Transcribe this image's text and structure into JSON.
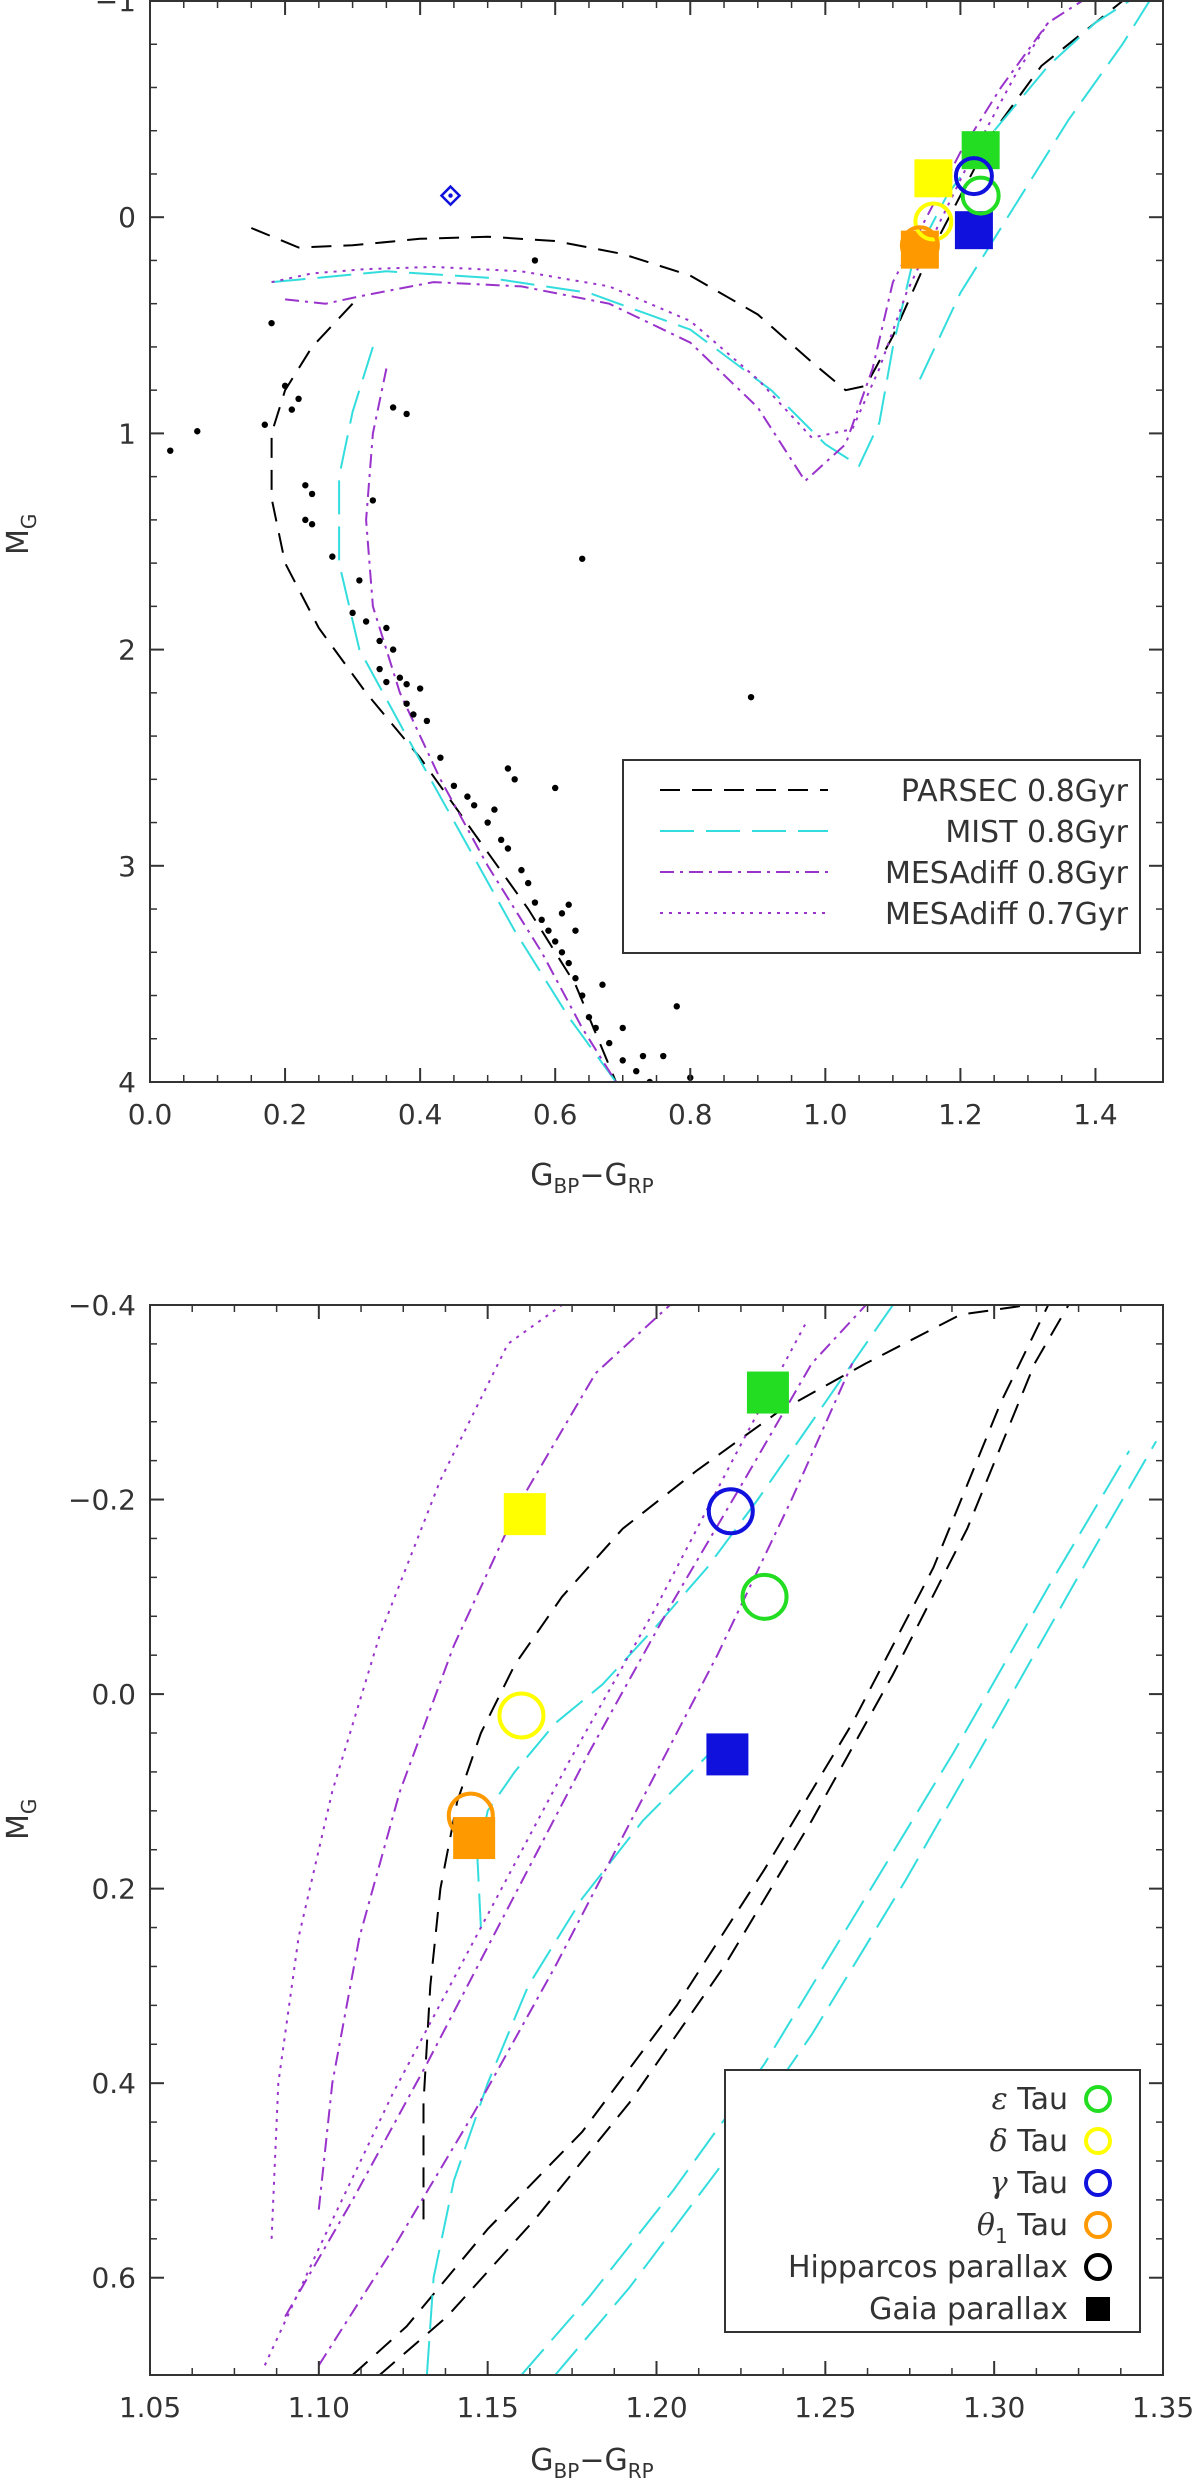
{
  "colors": {
    "parsec": "#000000",
    "mist": "#33dddd",
    "mesa": "#9933cc",
    "eps": "#22dd22",
    "delta": "#ffff00",
    "gamma": "#1111dd",
    "theta": "#ff9900"
  },
  "chart_data": [
    {
      "type": "scatter",
      "title": "",
      "xlabel": "G",
      "xlabel_sub": "BP",
      "xlabel_mid": "−G",
      "xlabel_sub2": "RP",
      "ylabel": "M",
      "ylabel_sub": "G",
      "xlim": [
        0.0,
        1.5
      ],
      "ylim": [
        -1,
        4
      ],
      "y_inverted": true,
      "xticks": [
        "0.0",
        "0.2",
        "0.4",
        "0.6",
        "0.8",
        "1.0",
        "1.2",
        "1.4"
      ],
      "xtick_values": [
        0.0,
        0.2,
        0.4,
        0.6,
        0.8,
        1.0,
        1.2,
        1.4
      ],
      "yticks": [
        "−1",
        "0",
        "1",
        "2",
        "3",
        "4"
      ],
      "ytick_values": [
        -1,
        0,
        1,
        2,
        3,
        4
      ],
      "legend": {
        "placement": "lower-right",
        "entries": [
          {
            "label": "PARSEC 0.8Gyr",
            "style": "parsec"
          },
          {
            "label": "MIST 0.8Gyr",
            "style": "mist"
          },
          {
            "label": "MESAdiff 0.8Gyr",
            "style": "mesa08"
          },
          {
            "label": "MESAdiff 0.7Gyr",
            "style": "mesa07"
          }
        ]
      },
      "series": [
        {
          "style": "parsec",
          "x": [
            0.15,
            0.22,
            0.3,
            0.4,
            0.5,
            0.6,
            0.7,
            0.8,
            0.9,
            0.98,
            1.03,
            1.06,
            1.1,
            1.15,
            1.2,
            1.25,
            1.32,
            1.4,
            1.44
          ],
          "y": [
            0.05,
            0.14,
            0.13,
            0.1,
            0.09,
            0.11,
            0.17,
            0.27,
            0.45,
            0.67,
            0.8,
            0.78,
            0.55,
            0.2,
            -0.1,
            -0.4,
            -0.7,
            -0.9,
            -1.0
          ]
        },
        {
          "style": "parsec",
          "x": [
            0.3,
            0.24,
            0.2,
            0.18,
            0.18,
            0.2,
            0.25,
            0.32,
            0.4,
            0.48,
            0.56,
            0.63,
            0.69
          ],
          "y": [
            0.4,
            0.6,
            0.8,
            1.0,
            1.3,
            1.6,
            1.9,
            2.2,
            2.5,
            2.85,
            3.2,
            3.55,
            4.0
          ]
        },
        {
          "style": "mist",
          "x": [
            0.18,
            0.25,
            0.35,
            0.5,
            0.65,
            0.8,
            0.92,
            1.0,
            1.05,
            1.08,
            1.1,
            1.13,
            1.18,
            1.25,
            1.33,
            1.4,
            1.45
          ],
          "y": [
            0.3,
            0.28,
            0.25,
            0.28,
            0.35,
            0.52,
            0.8,
            1.05,
            1.15,
            0.95,
            0.6,
            0.2,
            -0.1,
            -0.4,
            -0.7,
            -0.9,
            -1.0
          ]
        },
        {
          "style": "mist",
          "x": [
            0.33,
            0.3,
            0.28,
            0.28,
            0.31,
            0.38,
            0.46,
            0.54,
            0.62,
            0.69
          ],
          "y": [
            0.6,
            0.9,
            1.2,
            1.6,
            2.0,
            2.4,
            2.85,
            3.3,
            3.7,
            4.0
          ]
        },
        {
          "style": "mist",
          "x": [
            1.14,
            1.2,
            1.28,
            1.36,
            1.44,
            1.48
          ],
          "y": [
            0.75,
            0.35,
            -0.05,
            -0.45,
            -0.8,
            -1.0
          ]
        },
        {
          "style": "mesa08",
          "x": [
            0.2,
            0.26,
            0.32,
            0.42,
            0.55,
            0.68,
            0.8,
            0.9,
            0.97,
            1.03,
            1.07,
            1.1,
            1.15,
            1.2,
            1.26,
            1.33,
            1.38
          ],
          "y": [
            0.38,
            0.4,
            0.36,
            0.3,
            0.32,
            0.4,
            0.58,
            0.88,
            1.22,
            1.05,
            0.7,
            0.3,
            0.0,
            -0.3,
            -0.6,
            -0.9,
            -1.0
          ]
        },
        {
          "style": "mesa08",
          "x": [
            0.35,
            0.33,
            0.32,
            0.33,
            0.37,
            0.43,
            0.5,
            0.58,
            0.64,
            0.69
          ],
          "y": [
            0.7,
            1.0,
            1.4,
            1.8,
            2.2,
            2.6,
            3.0,
            3.4,
            3.75,
            4.0
          ]
        },
        {
          "style": "mesa07",
          "x": [
            0.18,
            0.24,
            0.32,
            0.42,
            0.55,
            0.68,
            0.8,
            0.9,
            0.98,
            1.04,
            1.08,
            1.12,
            1.17,
            1.22,
            1.28,
            1.33
          ],
          "y": [
            0.3,
            0.26,
            0.24,
            0.23,
            0.25,
            0.32,
            0.48,
            0.75,
            1.02,
            0.98,
            0.7,
            0.35,
            0.02,
            -0.3,
            -0.65,
            -0.9
          ]
        }
      ],
      "stars_x": [
        0.03,
        0.07,
        0.17,
        0.18,
        0.2,
        0.21,
        0.22,
        0.23,
        0.23,
        0.24,
        0.24,
        0.27,
        0.3,
        0.31,
        0.32,
        0.33,
        0.34,
        0.34,
        0.35,
        0.35,
        0.36,
        0.37,
        0.38,
        0.38,
        0.39,
        0.4,
        0.36,
        0.38,
        0.41,
        0.43,
        0.45,
        0.47,
        0.48,
        0.5,
        0.51,
        0.52,
        0.53,
        0.55,
        0.56,
        0.57,
        0.58,
        0.59,
        0.6,
        0.61,
        0.62,
        0.63,
        0.64,
        0.65,
        0.66,
        0.68,
        0.7,
        0.72,
        0.74,
        0.76,
        0.78,
        0.8,
        0.6,
        0.53,
        0.54,
        0.64,
        0.89,
        0.57,
        0.61,
        0.62,
        0.67,
        0.7,
        0.73,
        0.63
      ],
      "stars_y": [
        1.08,
        0.99,
        0.96,
        0.49,
        0.78,
        0.89,
        0.84,
        1.24,
        1.4,
        1.28,
        1.42,
        1.57,
        1.83,
        1.68,
        1.87,
        1.31,
        1.96,
        2.09,
        1.9,
        2.15,
        2.0,
        2.13,
        2.25,
        2.16,
        2.3,
        2.18,
        0.88,
        0.91,
        2.33,
        2.5,
        2.63,
        2.68,
        2.72,
        2.8,
        2.74,
        2.88,
        2.92,
        3.02,
        3.08,
        3.17,
        3.25,
        3.3,
        3.35,
        3.4,
        3.45,
        3.52,
        3.6,
        3.7,
        3.75,
        3.82,
        3.9,
        3.95,
        4.0,
        3.88,
        3.65,
        3.98,
        2.64,
        2.55,
        2.6,
        1.58,
        2.22,
        0.2,
        3.22,
        3.18,
        3.55,
        3.75,
        3.88,
        3.3
      ],
      "blue_diamond": {
        "x": 0.445,
        "y": -0.1
      },
      "markers": [
        {
          "star": "eps",
          "kind": "square",
          "x": 1.23,
          "y": -0.31
        },
        {
          "star": "eps",
          "kind": "circle",
          "x": 1.23,
          "y": -0.1
        },
        {
          "star": "delta",
          "kind": "square",
          "x": 1.16,
          "y": -0.18
        },
        {
          "star": "delta",
          "kind": "circle",
          "x": 1.16,
          "y": 0.02
        },
        {
          "star": "gamma",
          "kind": "square",
          "x": 1.22,
          "y": 0.06
        },
        {
          "star": "gamma",
          "kind": "circle",
          "x": 1.22,
          "y": -0.19
        },
        {
          "star": "theta",
          "kind": "square",
          "x": 1.14,
          "y": 0.15
        },
        {
          "star": "theta",
          "kind": "circle",
          "x": 1.14,
          "y": 0.13
        }
      ]
    },
    {
      "type": "scatter",
      "title": "",
      "xlabel": "G",
      "xlabel_sub": "BP",
      "xlabel_mid": "−G",
      "xlabel_sub2": "RP",
      "ylabel": "M",
      "ylabel_sub": "G",
      "xlim": [
        1.05,
        1.35
      ],
      "ylim": [
        -0.4,
        0.7
      ],
      "y_inverted": true,
      "xticks": [
        "1.05",
        "1.10",
        "1.15",
        "1.20",
        "1.25",
        "1.30",
        "1.35"
      ],
      "xtick_values": [
        1.05,
        1.1,
        1.15,
        1.2,
        1.25,
        1.3,
        1.35
      ],
      "yticks": [
        "−0.4",
        "−0.2",
        "0.0",
        "0.2",
        "0.4",
        "0.6"
      ],
      "ytick_values": [
        -0.4,
        -0.2,
        0.0,
        0.2,
        0.4,
        0.6
      ],
      "legend": {
        "placement": "lower-right",
        "entries": [
          {
            "label_symbol": "ε",
            "label_text": "Tau",
            "marker": "circle",
            "color": "eps"
          },
          {
            "label_symbol": "δ",
            "label_text": "Tau",
            "marker": "circle",
            "color": "delta"
          },
          {
            "label_symbol": "γ",
            "label_text": "Tau",
            "marker": "circle",
            "color": "gamma"
          },
          {
            "label_symbol": "θ",
            "label_sub": "1",
            "label_text": "Tau",
            "marker": "circle",
            "color": "theta"
          },
          {
            "label_text": "Hipparcos parallax",
            "marker": "circle",
            "color": "#000000"
          },
          {
            "label_text": "Gaia parallax",
            "marker": "square",
            "color": "#000000"
          }
        ]
      },
      "series": [
        {
          "style": "parsec",
          "x": [
            1.131,
            1.131,
            1.133,
            1.136,
            1.141,
            1.148,
            1.158,
            1.172,
            1.19,
            1.212,
            1.236,
            1.262,
            1.29,
            1.31
          ],
          "y": [
            0.54,
            0.42,
            0.3,
            0.2,
            0.11,
            0.04,
            -0.03,
            -0.1,
            -0.17,
            -0.23,
            -0.29,
            -0.34,
            -0.39,
            -0.4
          ]
        },
        {
          "style": "parsec",
          "x": [
            1.11,
            1.126,
            1.15,
            1.178,
            1.206,
            1.232,
            1.258,
            1.282,
            1.302,
            1.316
          ],
          "y": [
            0.7,
            0.65,
            0.55,
            0.45,
            0.32,
            0.18,
            0.03,
            -0.13,
            -0.3,
            -0.4
          ]
        },
        {
          "style": "parsec",
          "x": [
            1.118,
            1.138,
            1.164,
            1.192,
            1.22,
            1.246,
            1.27,
            1.292,
            1.312,
            1.322
          ],
          "y": [
            0.7,
            0.64,
            0.54,
            0.42,
            0.28,
            0.13,
            -0.02,
            -0.17,
            -0.34,
            -0.4
          ]
        },
        {
          "style": "mist",
          "x": [
            1.148,
            1.147,
            1.15,
            1.158,
            1.17,
            1.184,
            1.2,
            1.215,
            1.23,
            1.244,
            1.258,
            1.27
          ],
          "y": [
            0.24,
            0.17,
            0.12,
            0.08,
            0.03,
            -0.01,
            -0.07,
            -0.13,
            -0.2,
            -0.27,
            -0.34,
            -0.4
          ]
        },
        {
          "style": "mist",
          "x": [
            1.132,
            1.134,
            1.14,
            1.15,
            1.162,
            1.178,
            1.196,
            1.216
          ],
          "y": [
            0.7,
            0.6,
            0.5,
            0.4,
            0.3,
            0.21,
            0.13,
            0.06
          ]
        },
        {
          "style": "mist",
          "x": [
            1.16,
            1.18,
            1.205,
            1.232,
            1.26,
            1.288,
            1.316,
            1.34
          ],
          "y": [
            0.7,
            0.62,
            0.51,
            0.38,
            0.22,
            0.06,
            -0.11,
            -0.25
          ]
        },
        {
          "style": "mist",
          "x": [
            1.17,
            1.192,
            1.218,
            1.246,
            1.274,
            1.302,
            1.328,
            1.348
          ],
          "y": [
            0.7,
            0.61,
            0.49,
            0.35,
            0.19,
            0.02,
            -0.14,
            -0.26
          ]
        },
        {
          "style": "mesa08",
          "x": [
            1.1,
            1.104,
            1.112,
            1.124,
            1.14,
            1.16,
            1.182,
            1.204,
            1.226,
            1.246
          ],
          "y": [
            0.53,
            0.4,
            0.25,
            0.1,
            -0.05,
            -0.2,
            -0.33,
            -0.4,
            -0.4,
            -0.4
          ]
        },
        {
          "style": "mesa08",
          "x": [
            1.09,
            1.11,
            1.132,
            1.156,
            1.18,
            1.204,
            1.226,
            1.246,
            1.262
          ],
          "y": [
            0.64,
            0.52,
            0.38,
            0.22,
            0.06,
            -0.09,
            -0.22,
            -0.34,
            -0.4
          ]
        },
        {
          "style": "mesa08",
          "x": [
            1.1,
            1.122,
            1.146,
            1.17,
            1.194,
            1.218,
            1.24,
            1.258
          ],
          "y": [
            0.69,
            0.57,
            0.43,
            0.28,
            0.12,
            -0.04,
            -0.2,
            -0.34
          ]
        },
        {
          "style": "mesa07",
          "x": [
            1.086,
            1.088,
            1.094,
            1.104,
            1.118,
            1.136,
            1.156,
            1.172
          ],
          "y": [
            0.56,
            0.4,
            0.25,
            0.1,
            -0.06,
            -0.22,
            -0.36,
            -0.4
          ]
        },
        {
          "style": "mesa07",
          "x": [
            1.084,
            1.1,
            1.122,
            1.148,
            1.174,
            1.2,
            1.224,
            1.244
          ],
          "y": [
            0.69,
            0.57,
            0.41,
            0.24,
            0.07,
            -0.09,
            -0.25,
            -0.38
          ]
        }
      ],
      "markers": [
        {
          "star": "eps",
          "kind": "square",
          "x": 1.233,
          "y": -0.31
        },
        {
          "star": "eps",
          "kind": "circle",
          "x": 1.232,
          "y": -0.1
        },
        {
          "star": "delta",
          "kind": "square",
          "x": 1.161,
          "y": -0.185
        },
        {
          "star": "delta",
          "kind": "circle",
          "x": 1.16,
          "y": 0.022
        },
        {
          "star": "gamma",
          "kind": "square",
          "x": 1.221,
          "y": 0.062
        },
        {
          "star": "gamma",
          "kind": "circle",
          "x": 1.222,
          "y": -0.188
        },
        {
          "star": "theta",
          "kind": "square",
          "x": 1.146,
          "y": 0.148
        },
        {
          "star": "theta",
          "kind": "circle",
          "x": 1.145,
          "y": 0.125
        }
      ]
    }
  ]
}
